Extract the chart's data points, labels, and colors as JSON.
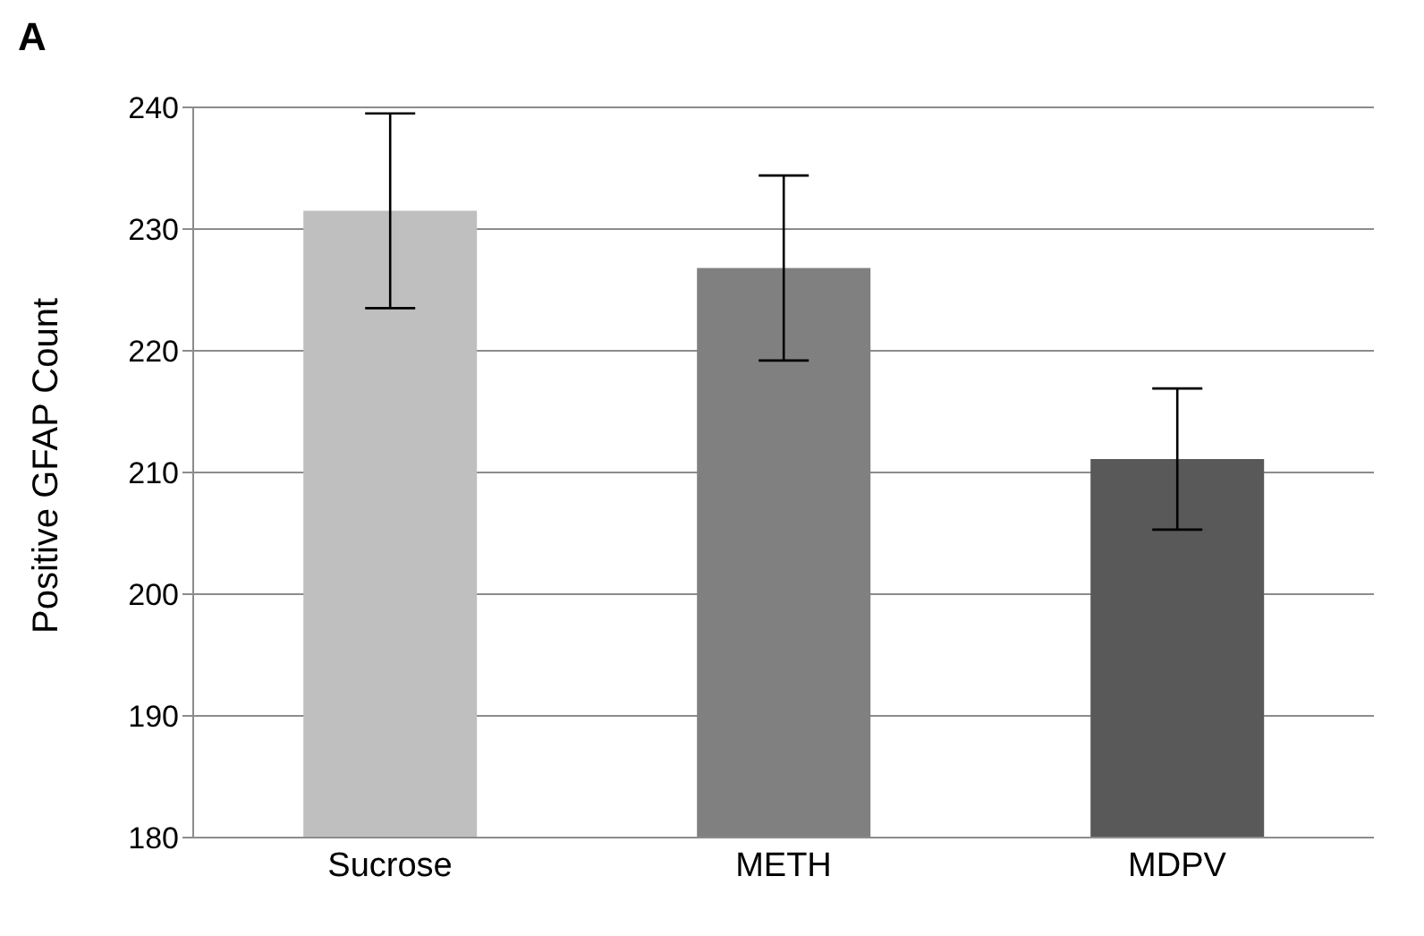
{
  "chart_data": {
    "type": "bar",
    "annotations": [
      "A"
    ],
    "ylabel": "Positive GFAP Count",
    "categories": [
      "Sucrose",
      "METH",
      "MDPV"
    ],
    "values": [
      231.5,
      226.8,
      211.1
    ],
    "colors": [
      "#bfbfbf",
      "#808080",
      "#595959"
    ],
    "errors": [
      8,
      7.6,
      5.8
    ],
    "ylim": [
      180,
      240
    ],
    "yticks": [
      180,
      190,
      200,
      210,
      220,
      230,
      240
    ],
    "grid": "y"
  }
}
